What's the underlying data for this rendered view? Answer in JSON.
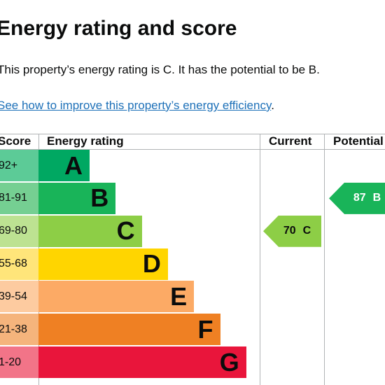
{
  "header": {
    "title": "Energy rating and score"
  },
  "summary": "This property’s energy rating is C. It has the potential to be B.",
  "link": {
    "text": "See how to improve this property’s energy efficiency",
    "suffix": "."
  },
  "table": {
    "headers": [
      "Score",
      "Energy rating",
      "Current",
      "Potential"
    ],
    "rows": [
      {
        "score": "92+",
        "band": "A",
        "color": "#00a862",
        "light": "#5ccb97"
      },
      {
        "score": "81-91",
        "band": "B",
        "color": "#19b459",
        "light": "#75cf92"
      },
      {
        "score": "69-80",
        "band": "C",
        "color": "#8dce46",
        "light": "#bde292"
      },
      {
        "score": "55-68",
        "band": "D",
        "color": "#ffd500",
        "light": "#ffe57a"
      },
      {
        "score": "39-54",
        "band": "E",
        "color": "#fcaa65",
        "light": "#fdcba0"
      },
      {
        "score": "21-38",
        "band": "F",
        "color": "#ef8023",
        "light": "#f5b47c"
      },
      {
        "score": "1-20",
        "band": "G",
        "color": "#e9153b",
        "light": "#f27488"
      }
    ],
    "current": {
      "score": 70,
      "band": "C"
    },
    "potential": {
      "score": 87,
      "band": "B"
    }
  }
}
